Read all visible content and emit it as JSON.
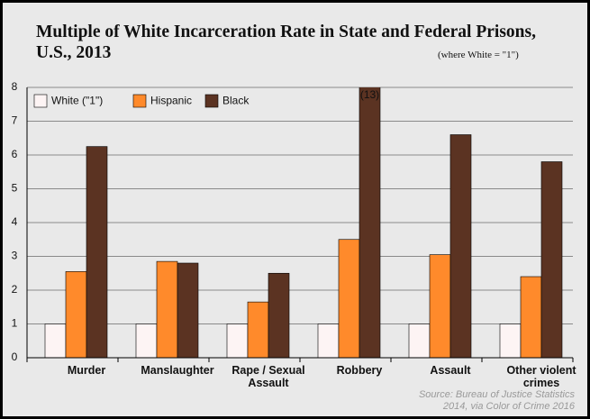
{
  "chart_data": {
    "type": "bar",
    "title": "Multiple of White Incarceration Rate in State and Federal Prisons, U.S., 2013",
    "subtitle": "(where White = \"1\")",
    "source": "Source: Bureau of Justice Statistics 2014, via Color of Crime 2016",
    "categories": [
      "Murder",
      "Manslaughter",
      "Rape / Sexual Assault",
      "Robbery",
      "Assault",
      "Other violent crimes"
    ],
    "series": [
      {
        "name": "White (\"1\")",
        "color": "#fdf4f4",
        "values": [
          1,
          1,
          1,
          1,
          1,
          1
        ]
      },
      {
        "name": "Hispanic",
        "color": "#ff8a2b",
        "values": [
          2.55,
          2.85,
          1.65,
          3.5,
          3.05,
          2.4
        ]
      },
      {
        "name": "Black",
        "color": "#5b3322",
        "values": [
          6.25,
          2.8,
          2.5,
          13,
          6.6,
          5.8
        ],
        "value_labels": [
          null,
          null,
          null,
          "(13)",
          null,
          null
        ]
      }
    ],
    "ylim": [
      0,
      8
    ],
    "yticks": [
      0,
      1,
      2,
      3,
      4,
      5,
      6,
      7,
      8
    ],
    "grid": true,
    "legend": "top-left"
  }
}
